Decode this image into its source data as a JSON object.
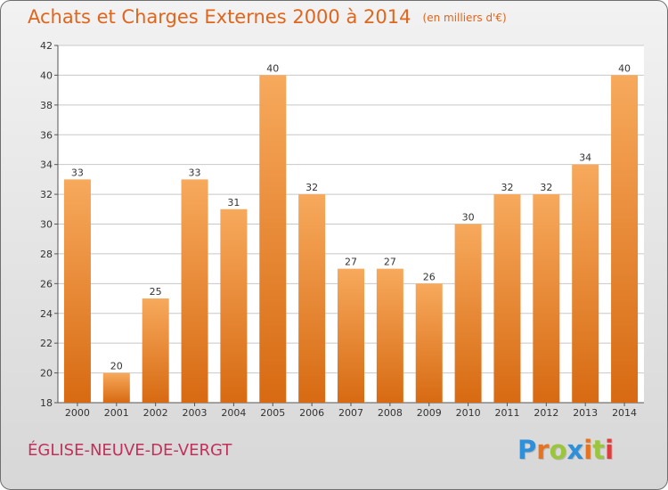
{
  "title": "Achats et Charges Externes 2000 à 2014",
  "unit": "(en milliers d'€)",
  "commune": "ÉGLISE-NEUVE-DE-VERGT",
  "logo": {
    "text": "Proxiti",
    "letters": [
      "P",
      "r",
      "o",
      "x",
      "i",
      "t",
      "i"
    ],
    "colors": [
      "#2f8fd8",
      "#e8731e",
      "#9bc53d",
      "#2f8fd8",
      "#e8731e",
      "#9bc53d",
      "#e23b3b"
    ]
  },
  "colors": {
    "title": "#e0651d",
    "bar_top": "#f7a95c",
    "bar_bottom": "#d76a12",
    "grid": "#c8c8c8",
    "commune": "#c2305b"
  },
  "chart_data": {
    "type": "bar",
    "title": "Achats et Charges Externes 2000 à 2014",
    "subtitle": "(en milliers d'€)",
    "categories": [
      "2000",
      "2001",
      "2002",
      "2003",
      "2004",
      "2005",
      "2006",
      "2007",
      "2008",
      "2009",
      "2010",
      "2011",
      "2012",
      "2013",
      "2014"
    ],
    "values": [
      33,
      20,
      25,
      33,
      31,
      40,
      32,
      27,
      27,
      26,
      30,
      32,
      32,
      34,
      40
    ],
    "ylim": [
      18,
      42
    ],
    "yticks": [
      18,
      20,
      22,
      24,
      26,
      28,
      30,
      32,
      34,
      36,
      38,
      40,
      42
    ],
    "grid": true,
    "data_labels": true,
    "legend": "none"
  }
}
